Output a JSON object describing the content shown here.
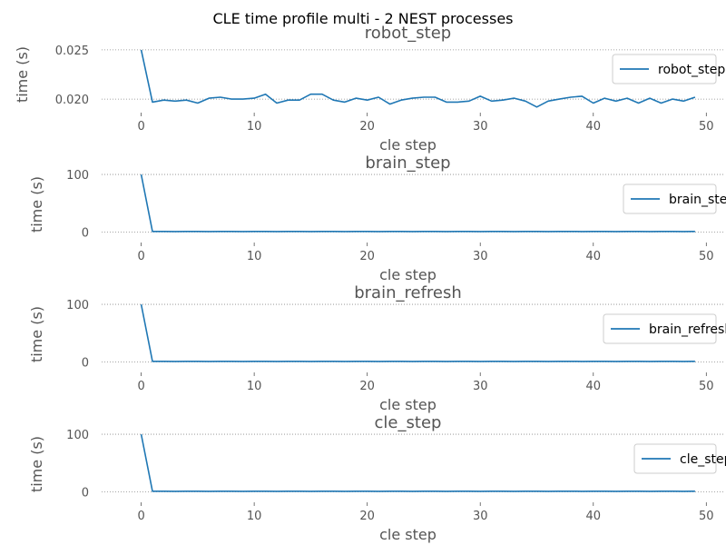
{
  "figure": {
    "suptitle": "CLE time profile multi - 2 NEST processes"
  },
  "colors": {
    "series": "#1f77b4",
    "grid": "#888888",
    "text": "#555555"
  },
  "chart_data": [
    {
      "type": "line",
      "title": "robot_step",
      "xlabel": "cle step",
      "ylabel": "time (s)",
      "xlim": [
        -3.5,
        51.5
      ],
      "ylim": [
        0.019,
        0.026
      ],
      "xticks": [
        0,
        10,
        20,
        30,
        40,
        50
      ],
      "xtick_labels": [
        "0",
        "10",
        "20",
        "30",
        "40",
        "50"
      ],
      "yticks": [
        0.02,
        0.025
      ],
      "ytick_labels": [
        "0.020",
        "0.025"
      ],
      "grid": true,
      "legend_position": "right",
      "series": [
        {
          "name": "robot_step",
          "values": [
            0.025,
            0.0197,
            0.0199,
            0.0198,
            0.0199,
            0.0196,
            0.0201,
            0.0202,
            0.02,
            0.02,
            0.0201,
            0.0205,
            0.0196,
            0.0199,
            0.0199,
            0.0205,
            0.0205,
            0.0199,
            0.0197,
            0.0201,
            0.0199,
            0.0202,
            0.0195,
            0.0199,
            0.0201,
            0.0202,
            0.0202,
            0.0197,
            0.0197,
            0.0198,
            0.0203,
            0.0198,
            0.0199,
            0.0201,
            0.0198,
            0.0192,
            0.0198,
            0.02,
            0.0202,
            0.0203,
            0.0196,
            0.0201,
            0.0198,
            0.0201,
            0.0196,
            0.0201,
            0.0196,
            0.02,
            0.0198,
            0.0202
          ]
        }
      ]
    },
    {
      "type": "line",
      "title": "brain_step",
      "xlabel": "cle step",
      "ylabel": "time (s)",
      "xlim": [
        -3.5,
        51.5
      ],
      "ylim": [
        -12,
        108
      ],
      "xticks": [
        0,
        10,
        20,
        30,
        40,
        50
      ],
      "xtick_labels": [
        "0",
        "10",
        "20",
        "30",
        "40",
        "50"
      ],
      "yticks": [
        0,
        100
      ],
      "ytick_labels": [
        "0",
        "100"
      ],
      "grid": true,
      "legend_position": "right",
      "series": [
        {
          "name": "brain_step",
          "values": [
            100,
            0.9,
            0.9,
            0.8,
            0.9,
            0.9,
            0.8,
            0.9,
            0.9,
            0.8,
            0.9,
            0.9,
            0.8,
            0.9,
            0.9,
            0.8,
            0.9,
            0.9,
            0.8,
            0.9,
            0.9,
            0.8,
            0.9,
            0.9,
            0.8,
            0.9,
            0.9,
            0.8,
            0.9,
            0.9,
            0.8,
            0.9,
            0.9,
            0.8,
            0.9,
            0.9,
            0.8,
            0.9,
            0.9,
            0.8,
            0.9,
            0.9,
            0.8,
            0.9,
            0.9,
            0.8,
            0.9,
            0.9,
            0.8,
            0.9
          ]
        }
      ]
    },
    {
      "type": "line",
      "title": "brain_refresh",
      "xlabel": "cle step",
      "ylabel": "time (s)",
      "xlim": [
        -3.5,
        51.5
      ],
      "ylim": [
        -12,
        108
      ],
      "xticks": [
        0,
        10,
        20,
        30,
        40,
        50
      ],
      "xtick_labels": [
        "0",
        "10",
        "20",
        "30",
        "40",
        "50"
      ],
      "yticks": [
        0,
        100
      ],
      "ytick_labels": [
        "0",
        "100"
      ],
      "grid": true,
      "legend_position": "right",
      "series": [
        {
          "name": "brain_refresh",
          "values": [
            100,
            0.9,
            0.9,
            0.8,
            0.9,
            0.9,
            0.8,
            0.9,
            0.9,
            0.8,
            0.9,
            0.9,
            0.8,
            0.9,
            0.9,
            0.8,
            0.9,
            0.9,
            0.8,
            0.9,
            0.9,
            0.8,
            0.9,
            0.9,
            0.8,
            0.9,
            0.9,
            0.8,
            0.9,
            0.9,
            0.8,
            0.9,
            0.9,
            0.8,
            0.9,
            0.9,
            0.8,
            0.9,
            0.9,
            0.8,
            0.9,
            0.9,
            0.8,
            0.9,
            0.9,
            0.8,
            0.9,
            0.9,
            0.8,
            0.9
          ]
        }
      ]
    },
    {
      "type": "line",
      "title": "cle_step",
      "xlabel": "cle step",
      "ylabel": "time (s)",
      "xlim": [
        -3.5,
        51.5
      ],
      "ylim": [
        -12,
        108
      ],
      "xticks": [
        0,
        10,
        20,
        30,
        40,
        50
      ],
      "xtick_labels": [
        "0",
        "10",
        "20",
        "30",
        "40",
        "50"
      ],
      "yticks": [
        0,
        100
      ],
      "ytick_labels": [
        "0",
        "100"
      ],
      "grid": true,
      "legend_position": "right",
      "series": [
        {
          "name": "cle_step",
          "values": [
            100,
            0.9,
            0.9,
            0.8,
            0.9,
            0.9,
            0.8,
            0.9,
            0.9,
            0.8,
            0.9,
            0.9,
            0.8,
            0.9,
            0.9,
            0.8,
            0.9,
            0.9,
            0.8,
            0.9,
            0.9,
            0.8,
            0.9,
            0.9,
            0.8,
            0.9,
            0.9,
            0.8,
            0.9,
            0.9,
            0.8,
            0.9,
            0.9,
            0.8,
            0.9,
            0.9,
            0.8,
            0.9,
            0.9,
            0.8,
            0.9,
            0.9,
            0.8,
            0.9,
            0.9,
            0.8,
            0.9,
            0.9,
            0.8,
            0.9
          ]
        }
      ]
    }
  ]
}
